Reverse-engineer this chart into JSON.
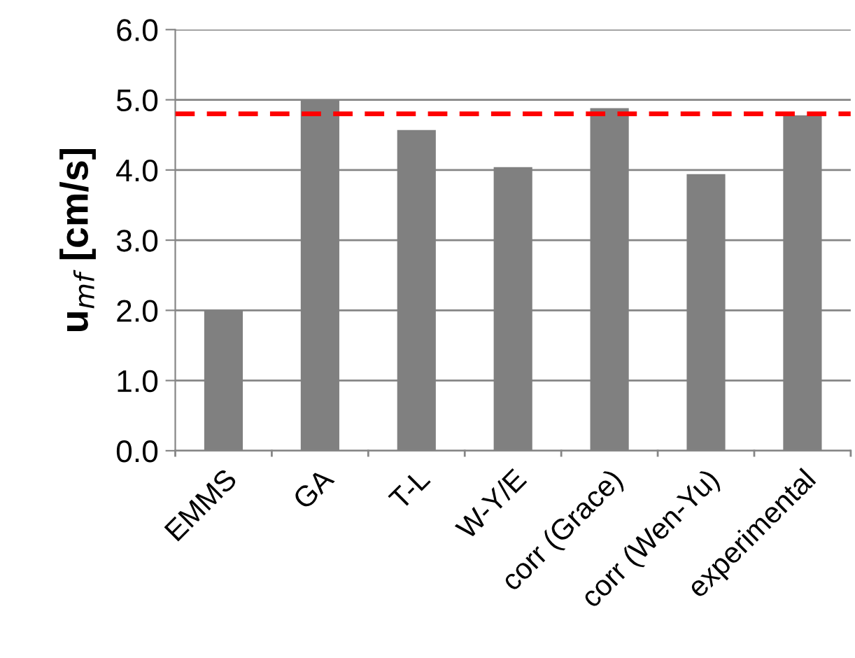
{
  "chart_data": {
    "type": "bar",
    "ylabel": "u$_{mf}$ [cm/s]",
    "categories": [
      "EMMS",
      "GA",
      "T-L",
      "W-Y/E",
      "corr (Grace)",
      "corr (Wen-Yu)",
      "experimental"
    ],
    "values": [
      2.0,
      5.0,
      4.57,
      4.04,
      4.88,
      3.94,
      4.78
    ],
    "color": "#808080",
    "ylim": [
      0,
      6
    ],
    "yticks": [
      {
        "value": 0,
        "label": "0.0"
      },
      {
        "value": 1,
        "label": "1.0"
      },
      {
        "value": 2,
        "label": "2.0"
      },
      {
        "value": 3,
        "label": "3.0"
      },
      {
        "value": 4,
        "label": "4.0"
      },
      {
        "value": 5,
        "label": "5.0"
      },
      {
        "value": 6,
        "label": "6.0"
      }
    ],
    "grid": "y",
    "ref_lines": [
      {
        "axis": "y",
        "value": 4.8,
        "color": "#ff0000",
        "line_style": "dashed"
      }
    ]
  }
}
